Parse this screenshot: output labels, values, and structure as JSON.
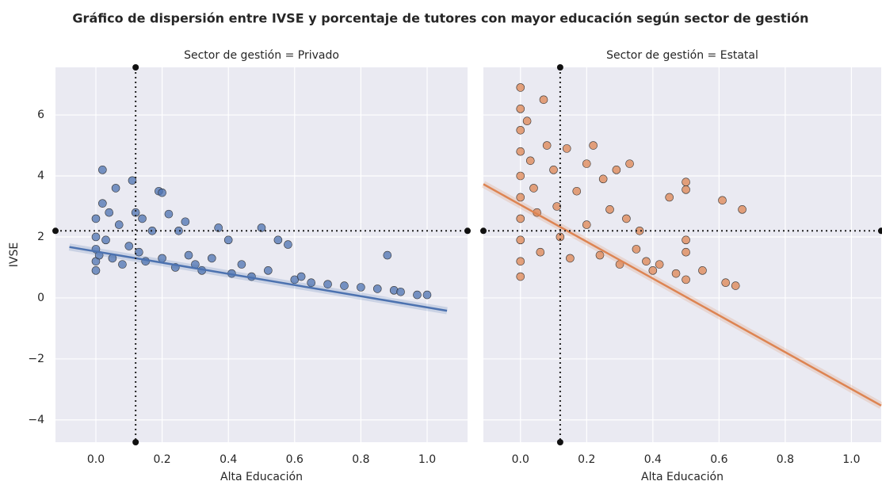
{
  "title": "Gráfico de dispersión entre IVSE y porcentaje de tutores con mayor educación según sector de gestión",
  "chart_data": [
    {
      "type": "scatter",
      "title": "Sector de gestión = Privado",
      "x_label": "Alta Educación",
      "y_label": "IVSE",
      "xlim": [
        -0.122,
        1.122
      ],
      "ylim": [
        -4.73,
        7.56
      ],
      "xticks": [
        {
          "value": 0,
          "label": "0.0"
        },
        0.2,
        0.4,
        0.6,
        0.8,
        {
          "value": 1,
          "label": "1.0"
        }
      ],
      "yticks": [
        {
          "value": -4,
          "label": "−4"
        },
        {
          "value": -2,
          "label": "−2"
        },
        0,
        2,
        4,
        6
      ],
      "grid": true,
      "vline": 0.12,
      "hline": 2.2,
      "series": [
        {
          "color": "#4c72b0",
          "x": [
            0.0,
            0.0,
            0.0,
            0.0,
            0.0,
            0.01,
            0.02,
            0.02,
            0.03,
            0.04,
            0.05,
            0.06,
            0.07,
            0.08,
            0.1,
            0.11,
            0.12,
            0.13,
            0.14,
            0.15,
            0.17,
            0.19,
            0.2,
            0.2,
            0.22,
            0.24,
            0.25,
            0.27,
            0.28,
            0.3,
            0.32,
            0.35,
            0.37,
            0.4,
            0.41,
            0.44,
            0.47,
            0.5,
            0.52,
            0.55,
            0.58,
            0.6,
            0.62,
            0.65,
            0.7,
            0.75,
            0.8,
            0.85,
            0.88,
            0.9,
            0.92,
            0.97,
            1.0
          ],
          "y": [
            1.2,
            1.6,
            2.0,
            2.6,
            0.9,
            1.4,
            4.2,
            3.1,
            1.9,
            2.8,
            1.3,
            3.6,
            2.4,
            1.1,
            1.7,
            3.85,
            2.8,
            1.5,
            2.6,
            1.2,
            2.2,
            3.5,
            3.45,
            1.3,
            2.75,
            1.0,
            2.2,
            2.5,
            1.4,
            1.1,
            0.9,
            1.3,
            2.3,
            1.9,
            0.8,
            1.1,
            0.7,
            2.3,
            0.9,
            1.9,
            1.75,
            0.6,
            0.7,
            0.5,
            0.45,
            0.4,
            0.35,
            0.3,
            1.4,
            0.25,
            0.2,
            0.1,
            0.1
          ]
        }
      ],
      "regression": {
        "color": "#4c72b0",
        "x": [
          -0.08,
          1.06
        ],
        "y": [
          1.67,
          -0.42
        ]
      }
    },
    {
      "type": "scatter",
      "title": "Sector de gestión = Estatal",
      "x_label": "Alta Educación",
      "sharey": true,
      "xlim": [
        -0.112,
        1.09
      ],
      "xticks": [
        {
          "value": 0,
          "label": "0.0"
        },
        0.2,
        0.4,
        0.6,
        0.8,
        {
          "value": 1,
          "label": "1.0"
        }
      ],
      "grid": true,
      "vline": 0.12,
      "hline": 2.2,
      "series": [
        {
          "color": "#dd8452",
          "x": [
            0.0,
            0.0,
            0.0,
            0.0,
            0.0,
            0.0,
            0.0,
            0.0,
            0.0,
            0.0,
            0.02,
            0.03,
            0.04,
            0.05,
            0.06,
            0.07,
            0.08,
            0.1,
            0.11,
            0.12,
            0.14,
            0.15,
            0.17,
            0.2,
            0.2,
            0.22,
            0.24,
            0.25,
            0.27,
            0.29,
            0.3,
            0.32,
            0.33,
            0.35,
            0.36,
            0.38,
            0.4,
            0.42,
            0.45,
            0.47,
            0.5,
            0.5,
            0.5,
            0.5,
            0.5,
            0.55,
            0.61,
            0.62,
            0.65,
            0.67
          ],
          "y": [
            6.9,
            6.2,
            5.5,
            4.8,
            4.0,
            3.3,
            2.6,
            1.9,
            1.2,
            0.7,
            5.8,
            4.5,
            3.6,
            2.8,
            1.5,
            6.5,
            5.0,
            4.2,
            3.0,
            2.0,
            4.9,
            1.3,
            3.5,
            4.4,
            2.4,
            5.0,
            1.4,
            3.9,
            2.9,
            4.2,
            1.1,
            2.6,
            4.4,
            1.6,
            2.2,
            1.2,
            0.9,
            1.1,
            3.3,
            0.8,
            3.55,
            3.8,
            1.9,
            1.5,
            0.6,
            0.9,
            3.2,
            0.5,
            0.4,
            2.9
          ]
        }
      ],
      "regression": {
        "color": "#dd8452",
        "x": [
          -0.112,
          1.09
        ],
        "y": [
          3.73,
          -3.53
        ]
      }
    }
  ]
}
